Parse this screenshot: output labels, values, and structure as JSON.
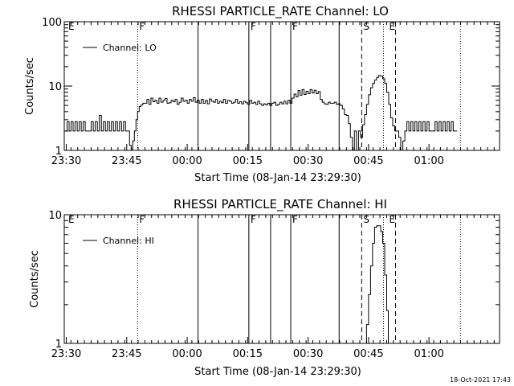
{
  "footer": {
    "timestamp": "18-Oct-2021 17:43"
  },
  "chart_data": [
    {
      "type": "line",
      "title": "RHESSI PARTICLE_RATE Channel: LO",
      "xlabel": "Start Time (08-Jan-14 23:29:30)",
      "ylabel": "Counts/sec",
      "yscale": "log",
      "ylim": [
        1,
        100
      ],
      "xlim": [
        0,
        108
      ],
      "x_unit": "minutes after 23:29:30",
      "x_ticks": [
        {
          "x": 0.5,
          "label": "23:30"
        },
        {
          "x": 15.5,
          "label": "23:45"
        },
        {
          "x": 30.5,
          "label": "00:00"
        },
        {
          "x": 45.5,
          "label": "00:15"
        },
        {
          "x": 60.5,
          "label": "00:30"
        },
        {
          "x": 75.5,
          "label": "00:45"
        },
        {
          "x": 90.5,
          "label": "01:00"
        }
      ],
      "y_ticks": [
        {
          "y": 1,
          "label": "1"
        },
        {
          "y": 10,
          "label": "10"
        },
        {
          "y": 100,
          "label": "100"
        }
      ],
      "legend": {
        "label": "Channel: LO",
        "position": "top-left"
      },
      "grid": false,
      "flags": [
        {
          "x": 0.6,
          "label": "E",
          "style": "none"
        },
        {
          "x": 18.2,
          "label": "F",
          "style": "dotted"
        },
        {
          "x": 33.2,
          "label": "",
          "style": "solid"
        },
        {
          "x": 45.8,
          "label": "F",
          "style": "solid"
        },
        {
          "x": 51.2,
          "label": "",
          "style": "solid"
        },
        {
          "x": 56.2,
          "label": "F",
          "style": "solid"
        },
        {
          "x": 68.2,
          "label": "",
          "style": "solid"
        },
        {
          "x": 73.8,
          "label": "S",
          "style": "dashed"
        },
        {
          "x": 79.2,
          "label": "",
          "style": "dotted"
        },
        {
          "x": 80.2,
          "label": "E",
          "style": "none"
        },
        {
          "x": 82.2,
          "label": "",
          "style": "dashed"
        },
        {
          "x": 98.3,
          "label": "",
          "style": "dotted"
        }
      ],
      "series": [
        {
          "name": "Channel: LO",
          "points": [
            [
              0.2,
              2
            ],
            [
              0.7,
              2.8
            ],
            [
              1.2,
              2
            ],
            [
              1.7,
              2.8
            ],
            [
              2.2,
              2
            ],
            [
              2.7,
              2.8
            ],
            [
              3.2,
              2
            ],
            [
              3.7,
              2.8
            ],
            [
              4.2,
              2
            ],
            [
              4.7,
              2.8
            ],
            [
              5.2,
              2
            ],
            [
              5.7,
              2
            ],
            [
              6.2,
              2
            ],
            [
              6.7,
              2.8
            ],
            [
              7.2,
              2
            ],
            [
              7.7,
              2.8
            ],
            [
              8.2,
              2
            ],
            [
              8.7,
              3.5
            ],
            [
              9.2,
              2
            ],
            [
              9.7,
              2.8
            ],
            [
              10.2,
              2
            ],
            [
              10.7,
              2.8
            ],
            [
              11.2,
              2
            ],
            [
              11.7,
              2.8
            ],
            [
              12.2,
              2
            ],
            [
              12.7,
              2.8
            ],
            [
              13.2,
              2
            ],
            [
              13.7,
              2.8
            ],
            [
              14.2,
              2
            ],
            [
              14.7,
              2.8
            ],
            [
              15.2,
              2
            ],
            [
              15.7,
              2
            ],
            [
              16.2,
              1.2
            ],
            [
              16.6,
              1
            ],
            [
              17,
              1.4
            ],
            [
              17.4,
              2
            ],
            [
              17.8,
              3
            ],
            [
              18.2,
              4
            ],
            [
              18.6,
              4.8
            ],
            [
              19,
              5.1
            ],
            [
              19.5,
              5.4
            ],
            [
              20,
              5.4
            ],
            [
              20.5,
              6.2
            ],
            [
              21,
              5.2
            ],
            [
              21.5,
              6.5
            ],
            [
              22,
              5.7
            ],
            [
              22.5,
              6
            ],
            [
              23,
              5.4
            ],
            [
              23.5,
              6.5
            ],
            [
              24,
              5.6
            ],
            [
              24.5,
              6
            ],
            [
              25,
              6.4
            ],
            [
              25.5,
              5.4
            ],
            [
              26,
              5.5
            ],
            [
              26.5,
              6
            ],
            [
              27,
              5.7
            ],
            [
              27.5,
              6.2
            ],
            [
              28,
              5.2
            ],
            [
              28.5,
              5.6
            ],
            [
              29,
              6.5
            ],
            [
              29.5,
              5.8
            ],
            [
              30,
              6
            ],
            [
              30.5,
              5.4
            ],
            [
              31,
              6.2
            ],
            [
              31.5,
              5.8
            ],
            [
              32,
              6.6
            ],
            [
              32.5,
              5.6
            ],
            [
              33,
              6
            ],
            [
              33.5,
              5.4
            ],
            [
              34,
              6.2
            ],
            [
              34.5,
              5.4
            ],
            [
              35,
              6
            ],
            [
              35.5,
              5.3
            ],
            [
              36,
              6.3
            ],
            [
              36.5,
              5.8
            ],
            [
              37,
              5.6
            ],
            [
              37.5,
              6.2
            ],
            [
              38,
              5.4
            ],
            [
              38.5,
              5.8
            ],
            [
              39,
              5.5
            ],
            [
              39.5,
              6.2
            ],
            [
              40,
              5.4
            ],
            [
              40.5,
              6
            ],
            [
              41,
              5.8
            ],
            [
              41.5,
              5.4
            ],
            [
              42,
              5.6
            ],
            [
              42.5,
              6.2
            ],
            [
              43,
              5.4
            ],
            [
              43.5,
              5.7
            ],
            [
              44,
              5.3
            ],
            [
              44.5,
              5.8
            ],
            [
              45,
              5.5
            ],
            [
              45.5,
              5.2
            ],
            [
              46,
              6
            ],
            [
              46.5,
              5.4
            ],
            [
              47,
              5.6
            ],
            [
              47.5,
              5.2
            ],
            [
              48,
              5.8
            ],
            [
              48.5,
              5.3
            ],
            [
              49,
              5
            ],
            [
              49.5,
              5.3
            ],
            [
              50,
              5.1
            ],
            [
              50.5,
              5.4
            ],
            [
              51,
              5
            ],
            [
              51.5,
              5.4
            ],
            [
              52,
              5.6
            ],
            [
              52.5,
              5
            ],
            [
              53,
              5.2
            ],
            [
              53.5,
              5.6
            ],
            [
              54,
              5.3
            ],
            [
              54.5,
              5.8
            ],
            [
              55,
              5.3
            ],
            [
              55.5,
              6
            ],
            [
              56,
              5.4
            ],
            [
              56.5,
              6.5
            ],
            [
              57,
              7.5
            ],
            [
              57.5,
              6.8
            ],
            [
              58,
              8.5
            ],
            [
              58.5,
              7.2
            ],
            [
              59,
              8.8
            ],
            [
              59.5,
              7.4
            ],
            [
              60,
              8.3
            ],
            [
              60.5,
              7.6
            ],
            [
              61,
              8.8
            ],
            [
              61.5,
              7.8
            ],
            [
              62,
              8.6
            ],
            [
              62.5,
              7.6
            ],
            [
              63,
              8.2
            ],
            [
              63.5,
              6.2
            ],
            [
              64,
              5.6
            ],
            [
              64.5,
              5.3
            ],
            [
              65,
              5.2
            ],
            [
              65.5,
              5.6
            ],
            [
              66,
              5.4
            ],
            [
              66.5,
              5.4
            ],
            [
              67,
              5.6
            ],
            [
              67.5,
              5.2
            ],
            [
              68,
              5.3
            ],
            [
              68.5,
              5
            ],
            [
              69,
              4.4
            ],
            [
              69.5,
              3.6
            ],
            [
              70,
              3.5
            ],
            [
              70.5,
              2.6
            ],
            [
              71,
              1.6
            ],
            [
              71.5,
              1
            ],
            [
              72,
              2
            ],
            [
              72.5,
              1
            ],
            [
              73,
              2
            ],
            [
              73.5,
              1.6
            ],
            [
              74,
              2.5
            ],
            [
              74.5,
              3.6
            ],
            [
              75,
              5.2
            ],
            [
              75.5,
              7.3
            ],
            [
              76,
              9.4
            ],
            [
              76.5,
              11
            ],
            [
              77,
              12.4
            ],
            [
              77.5,
              13.6
            ],
            [
              78,
              14.6
            ],
            [
              78.5,
              14.2
            ],
            [
              79,
              13
            ],
            [
              79.5,
              11
            ],
            [
              80,
              8
            ],
            [
              80.5,
              5.2
            ],
            [
              81,
              3.2
            ],
            [
              81.5,
              2.4
            ],
            [
              82,
              2
            ],
            [
              82.5,
              2
            ],
            [
              83,
              1.6
            ],
            [
              83.5,
              1
            ],
            [
              84,
              1.4
            ],
            [
              84.5,
              2
            ],
            [
              85,
              2.8
            ],
            [
              85.5,
              2
            ],
            [
              86,
              2.8
            ],
            [
              86.5,
              2
            ],
            [
              87,
              2.8
            ],
            [
              87.5,
              2
            ],
            [
              88,
              2.8
            ],
            [
              88.5,
              2
            ],
            [
              89,
              2.8
            ],
            [
              89.5,
              2
            ],
            [
              90,
              2.8
            ],
            [
              90.5,
              2
            ],
            [
              91,
              2
            ],
            [
              91.5,
              2
            ],
            [
              92,
              2.8
            ],
            [
              92.5,
              2
            ],
            [
              93,
              2.8
            ],
            [
              93.5,
              2
            ],
            [
              94,
              2.8
            ],
            [
              94.5,
              2
            ],
            [
              95,
              2.8
            ],
            [
              95.5,
              2
            ],
            [
              96,
              2.8
            ],
            [
              96.5,
              2
            ],
            [
              97,
              2
            ],
            [
              97.5,
              2
            ]
          ]
        }
      ]
    },
    {
      "type": "line",
      "title": "RHESSI PARTICLE_RATE Channel: HI",
      "xlabel": "Start Time (08-Jan-14 23:29:30)",
      "ylabel": "Counts/sec",
      "yscale": "log",
      "ylim": [
        1,
        10
      ],
      "xlim": [
        0,
        108
      ],
      "x_unit": "minutes after 23:29:30",
      "x_ticks": [
        {
          "x": 0.5,
          "label": "23:30"
        },
        {
          "x": 15.5,
          "label": "23:45"
        },
        {
          "x": 30.5,
          "label": "00:00"
        },
        {
          "x": 45.5,
          "label": "00:15"
        },
        {
          "x": 60.5,
          "label": "00:30"
        },
        {
          "x": 75.5,
          "label": "00:45"
        },
        {
          "x": 90.5,
          "label": "01:00"
        }
      ],
      "y_ticks": [
        {
          "y": 1,
          "label": "1"
        },
        {
          "y": 10,
          "label": "10"
        }
      ],
      "legend": {
        "label": "Channel: HI",
        "position": "top-left"
      },
      "grid": false,
      "flags": [
        {
          "x": 0.6,
          "label": "E",
          "style": "none"
        },
        {
          "x": 18.2,
          "label": "F",
          "style": "dotted"
        },
        {
          "x": 33.2,
          "label": "",
          "style": "solid"
        },
        {
          "x": 45.8,
          "label": "F",
          "style": "solid"
        },
        {
          "x": 51.2,
          "label": "",
          "style": "solid"
        },
        {
          "x": 56.2,
          "label": "F",
          "style": "solid"
        },
        {
          "x": 68.2,
          "label": "",
          "style": "solid"
        },
        {
          "x": 73.8,
          "label": "S",
          "style": "dashed"
        },
        {
          "x": 79.2,
          "label": "",
          "style": "dotted"
        },
        {
          "x": 80.2,
          "label": "E",
          "style": "none"
        },
        {
          "x": 82.2,
          "label": "",
          "style": "dashed"
        },
        {
          "x": 98.3,
          "label": "",
          "style": "dotted"
        }
      ],
      "series": [
        {
          "name": "Channel: HI",
          "points": [
            [
              74.6,
              1
            ],
            [
              75,
              1.4
            ],
            [
              75.5,
              2.4
            ],
            [
              76,
              4
            ],
            [
              76.5,
              6
            ],
            [
              77,
              8
            ],
            [
              77.5,
              8.2
            ],
            [
              78,
              8.2
            ],
            [
              78.5,
              7.4
            ],
            [
              79,
              6
            ],
            [
              79.5,
              3.4
            ],
            [
              80,
              1.8
            ],
            [
              80.4,
              1
            ]
          ]
        }
      ]
    }
  ]
}
